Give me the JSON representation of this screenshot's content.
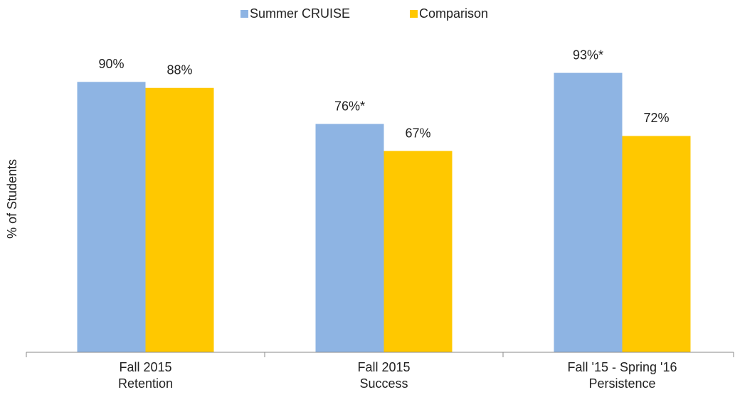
{
  "chart_data": {
    "type": "bar",
    "y_label": "% of Students",
    "categories": [
      [
        "Fall 2015",
        "Retention"
      ],
      [
        "Fall 2015",
        "Success"
      ],
      [
        "Fall '15 - Spring '16",
        "Persistence"
      ]
    ],
    "series": [
      {
        "name": "Summer CRUISE",
        "color": "#8eb4e3",
        "values": [
          90,
          76,
          93
        ],
        "value_labels": [
          "90%",
          "76%*",
          "93%*"
        ]
      },
      {
        "name": "Comparison",
        "color": "#ffc800",
        "values": [
          88,
          67,
          72
        ],
        "value_labels": [
          "88%",
          "67%",
          "72%"
        ]
      }
    ],
    "ylim": [
      0,
      100
    ]
  }
}
